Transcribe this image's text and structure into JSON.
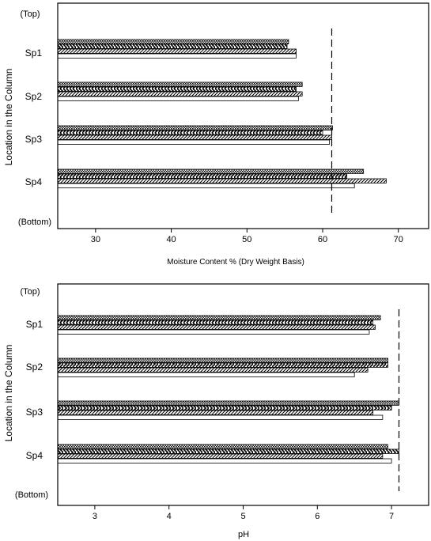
{
  "chart_data": [
    {
      "type": "bar",
      "orientation": "horizontal",
      "ylabel": "Location in the Column",
      "xlabel": "Moisture Content % (Dry Weight Basis)",
      "xlim": [
        25,
        74
      ],
      "xticks": [
        30,
        40,
        50,
        60,
        70
      ],
      "y_end_labels": [
        "(Top)",
        "(Bottom)"
      ],
      "categories": [
        "Sp1",
        "Sp2",
        "Sp3",
        "Sp4"
      ],
      "series": [
        {
          "values": [
            55.5,
            57.3,
            61.3,
            65.4
          ],
          "fill": "dots"
        },
        {
          "values": [
            55.3,
            56.5,
            60.0,
            63.2
          ],
          "fill": "chevron"
        },
        {
          "values": [
            56.5,
            57.3,
            61.2,
            68.4
          ],
          "fill": "diagonal"
        },
        {
          "values": [
            56.5,
            56.8,
            60.9,
            64.2
          ],
          "fill": "white"
        }
      ],
      "reference_line": {
        "value": 61.2,
        "style": "dashed"
      },
      "grid": false
    },
    {
      "type": "bar",
      "orientation": "horizontal",
      "ylabel": "Location in the Column",
      "xlabel": "pH",
      "xlim": [
        2.5,
        7.5
      ],
      "xticks": [
        3,
        4,
        5,
        6,
        7
      ],
      "y_end_labels": [
        "(Top)",
        "(Bottom)"
      ],
      "categories": [
        "Sp1",
        "Sp2",
        "Sp3",
        "Sp4"
      ],
      "series": [
        {
          "values": [
            6.85,
            6.95,
            7.1,
            6.95
          ],
          "fill": "dots"
        },
        {
          "values": [
            6.75,
            6.95,
            7.0,
            7.1
          ],
          "fill": "chevron"
        },
        {
          "values": [
            6.78,
            6.68,
            6.75,
            6.88
          ],
          "fill": "diagonal"
        },
        {
          "values": [
            6.7,
            6.5,
            6.88,
            7.0
          ],
          "fill": "white"
        }
      ],
      "reference_line": {
        "value": 7.1,
        "style": "dashed"
      },
      "grid": false
    }
  ]
}
